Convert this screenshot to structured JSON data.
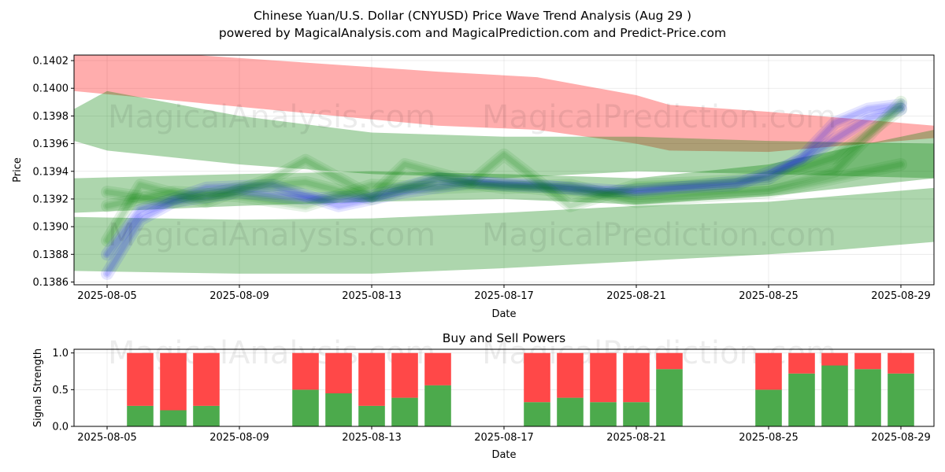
{
  "title_line1": "Chinese Yuan/U.S. Dollar (CNYUSD) Price Wave Trend Analysis (Aug 29 )",
  "title_line2": "powered by MagicalAnalysis.com and MagicalPrediction.com and Predict-Price.com",
  "watermarks": [
    "MagicalAnalysis.com",
    "MagicalPrediction.com"
  ],
  "colors": {
    "red": "#ff0000",
    "green": "#008000",
    "blue": "#0000ff",
    "bar_buy": "#4caa4c",
    "bar_sell": "#ff4848"
  },
  "chart_data": [
    {
      "type": "area",
      "title": "",
      "xlabel": "Date",
      "ylabel": "Price",
      "xlim": [
        "2025-08-04",
        "2025-08-30"
      ],
      "ylim": [
        0.13858,
        0.14024
      ],
      "x_ticks": [
        "2025-08-05",
        "2025-08-09",
        "2025-08-13",
        "2025-08-17",
        "2025-08-21",
        "2025-08-25",
        "2025-08-29"
      ],
      "y_ticks": [
        0.1386,
        0.1388,
        0.139,
        0.1392,
        0.1394,
        0.1396,
        0.1398,
        0.14,
        0.1402
      ],
      "grid": true,
      "bands": [
        {
          "color": "red",
          "x": [
            "2025-08-04",
            "2025-08-15",
            "2025-08-18",
            "2025-08-21",
            "2025-08-22",
            "2025-08-25",
            "2025-08-30"
          ],
          "lower": [
            0.13998,
            0.13973,
            0.1397,
            0.1396,
            0.13955,
            0.13954,
            0.13964
          ],
          "upper": [
            0.1403,
            0.14012,
            0.14008,
            0.13995,
            0.13988,
            0.13983,
            0.13973
          ]
        },
        {
          "color": "green",
          "x": [
            "2025-08-04",
            "2025-08-05",
            "2025-08-09",
            "2025-08-13",
            "2025-08-17",
            "2025-08-21",
            "2025-08-25",
            "2025-08-30"
          ],
          "lower": [
            0.13962,
            0.13955,
            0.13945,
            0.13938,
            0.13935,
            0.1394,
            0.13938,
            0.13935
          ],
          "upper": [
            0.13985,
            0.13998,
            0.1398,
            0.13968,
            0.13965,
            0.13965,
            0.13962,
            0.1396
          ]
        },
        {
          "color": "green",
          "x": [
            "2025-08-04",
            "2025-08-09",
            "2025-08-13",
            "2025-08-17",
            "2025-08-21",
            "2025-08-25",
            "2025-08-27",
            "2025-08-30"
          ],
          "lower": [
            0.13868,
            0.13866,
            0.13866,
            0.1387,
            0.13875,
            0.1388,
            0.13883,
            0.13889
          ],
          "upper": [
            0.13907,
            0.13905,
            0.13906,
            0.1391,
            0.13915,
            0.13918,
            0.13922,
            0.13928
          ]
        },
        {
          "color": "green",
          "x": [
            "2025-08-04",
            "2025-08-09",
            "2025-08-13",
            "2025-08-17",
            "2025-08-21",
            "2025-08-25",
            "2025-08-30"
          ],
          "lower": [
            0.1391,
            0.13915,
            0.13918,
            0.1392,
            0.13916,
            0.13922,
            0.13935
          ],
          "upper": [
            0.13935,
            0.13938,
            0.1394,
            0.13938,
            0.13935,
            0.13945,
            0.1397
          ]
        }
      ],
      "waves": [
        {
          "color": "blue",
          "x": [
            "2025-08-05",
            "2025-08-06",
            "2025-08-07",
            "2025-08-09",
            "2025-08-11",
            "2025-08-13",
            "2025-08-15",
            "2025-08-17",
            "2025-08-19",
            "2025-08-21",
            "2025-08-23",
            "2025-08-25",
            "2025-08-26",
            "2025-08-27",
            "2025-08-28",
            "2025-08-29"
          ],
          "y": [
            0.13866,
            0.13905,
            0.13918,
            0.13925,
            0.1392,
            0.13922,
            0.13935,
            0.1393,
            0.13928,
            0.13925,
            0.1393,
            0.13935,
            0.1395,
            0.13975,
            0.13985,
            0.13988
          ]
        },
        {
          "color": "blue",
          "x": [
            "2025-08-05",
            "2025-08-06",
            "2025-08-08",
            "2025-08-10",
            "2025-08-12",
            "2025-08-14",
            "2025-08-16",
            "2025-08-18",
            "2025-08-20",
            "2025-08-22",
            "2025-08-24",
            "2025-08-26",
            "2025-08-28",
            "2025-08-29"
          ],
          "y": [
            0.1388,
            0.13912,
            0.13928,
            0.1393,
            0.13915,
            0.13925,
            0.13932,
            0.1393,
            0.13925,
            0.13928,
            0.1393,
            0.13948,
            0.13978,
            0.13985
          ]
        },
        {
          "color": "green",
          "x": [
            "2025-08-05",
            "2025-08-06",
            "2025-08-08",
            "2025-08-10",
            "2025-08-11",
            "2025-08-13",
            "2025-08-14",
            "2025-08-16",
            "2025-08-17",
            "2025-08-19",
            "2025-08-21",
            "2025-08-23",
            "2025-08-25",
            "2025-08-27",
            "2025-08-29"
          ],
          "y": [
            0.1389,
            0.1393,
            0.13918,
            0.13935,
            0.13948,
            0.13922,
            0.13945,
            0.13932,
            0.13952,
            0.13915,
            0.1393,
            0.13932,
            0.13935,
            0.1395,
            0.13985
          ]
        },
        {
          "color": "green",
          "x": [
            "2025-08-05",
            "2025-08-07",
            "2025-08-09",
            "2025-08-11",
            "2025-08-13",
            "2025-08-15",
            "2025-08-17",
            "2025-08-19",
            "2025-08-21",
            "2025-08-23",
            "2025-08-25",
            "2025-08-27",
            "2025-08-29"
          ],
          "y": [
            0.13915,
            0.13925,
            0.13922,
            0.13915,
            0.1393,
            0.13928,
            0.1393,
            0.13925,
            0.13922,
            0.13925,
            0.13928,
            0.1394,
            0.1399
          ]
        },
        {
          "color": "green",
          "x": [
            "2025-08-05",
            "2025-08-07",
            "2025-08-09",
            "2025-08-11",
            "2025-08-13",
            "2025-08-15",
            "2025-08-17",
            "2025-08-19",
            "2025-08-21",
            "2025-08-23",
            "2025-08-25",
            "2025-08-27",
            "2025-08-29"
          ],
          "y": [
            0.13925,
            0.13918,
            0.13928,
            0.13932,
            0.1392,
            0.13935,
            0.13928,
            0.1393,
            0.13918,
            0.13922,
            0.13925,
            0.13935,
            0.13945
          ]
        }
      ]
    },
    {
      "type": "bar",
      "title": "Buy and Sell Powers",
      "xlabel": "Date",
      "ylabel": "Signal Strength",
      "xlim": [
        "2025-08-04",
        "2025-08-30"
      ],
      "ylim": [
        0,
        1.05
      ],
      "x_ticks": [
        "2025-08-05",
        "2025-08-09",
        "2025-08-13",
        "2025-08-17",
        "2025-08-21",
        "2025-08-25",
        "2025-08-29"
      ],
      "y_ticks": [
        0.0,
        0.5,
        1.0
      ],
      "grid": true,
      "stacked": true,
      "categories": [
        "2025-08-06",
        "2025-08-07",
        "2025-08-08",
        "2025-08-11",
        "2025-08-12",
        "2025-08-13",
        "2025-08-14",
        "2025-08-15",
        "2025-08-18",
        "2025-08-19",
        "2025-08-20",
        "2025-08-21",
        "2025-08-22",
        "2025-08-25",
        "2025-08-26",
        "2025-08-27",
        "2025-08-28",
        "2025-08-29"
      ],
      "series": [
        {
          "name": "",
          "color": "bar_buy",
          "values": [
            0.28,
            0.22,
            0.28,
            0.5,
            0.45,
            0.28,
            0.39,
            0.56,
            0.33,
            0.39,
            0.33,
            0.33,
            0.78,
            0.5,
            0.72,
            0.83,
            0.78,
            0.72
          ]
        },
        {
          "name": "",
          "color": "bar_sell",
          "values": [
            0.72,
            0.78,
            0.72,
            0.5,
            0.55,
            0.72,
            0.61,
            0.44,
            0.67,
            0.61,
            0.67,
            0.67,
            0.22,
            0.5,
            0.28,
            0.17,
            0.22,
            0.28
          ]
        }
      ]
    }
  ]
}
